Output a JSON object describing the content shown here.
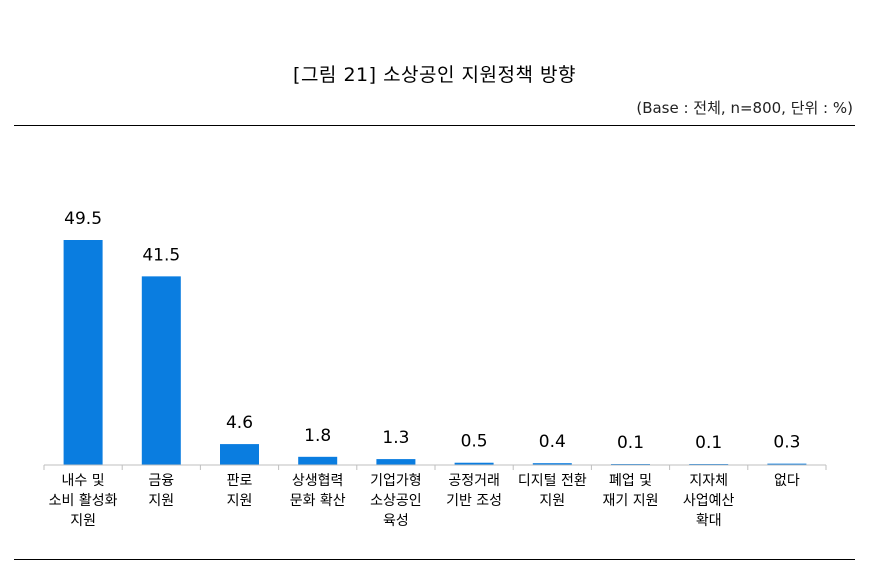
{
  "header": {
    "title": "[그림 21] 소상공인 지원정책 방향",
    "base_note": "(Base : 전체, n=800, 단위 : %)"
  },
  "chart_data": {
    "type": "bar",
    "title": "[그림 21] 소상공인 지원정책 방향",
    "xlabel": "",
    "ylabel": "",
    "unit": "%",
    "ylim": [
      0,
      55
    ],
    "grid": false,
    "bar_color": "#0a7de0",
    "categories": [
      [
        "내수 및",
        "소비 활성화",
        "지원"
      ],
      [
        "금융",
        "지원"
      ],
      [
        "판로",
        "지원"
      ],
      [
        "상생협력",
        "문화 확산"
      ],
      [
        "기업가형",
        "소상공인",
        "육성"
      ],
      [
        "공정거래",
        "기반 조성"
      ],
      [
        "디지털 전환",
        "지원"
      ],
      [
        "폐업 및",
        "재기 지원"
      ],
      [
        "지자체",
        "사업예산",
        "확대"
      ],
      [
        "없다"
      ]
    ],
    "values": [
      49.5,
      41.5,
      4.6,
      1.8,
      1.3,
      0.5,
      0.4,
      0.1,
      0.1,
      0.3
    ],
    "value_labels": [
      "49.5",
      "41.5",
      "4.6",
      "1.8",
      "1.3",
      "0.5",
      "0.4",
      "0.1",
      "0.1",
      "0.3"
    ]
  }
}
